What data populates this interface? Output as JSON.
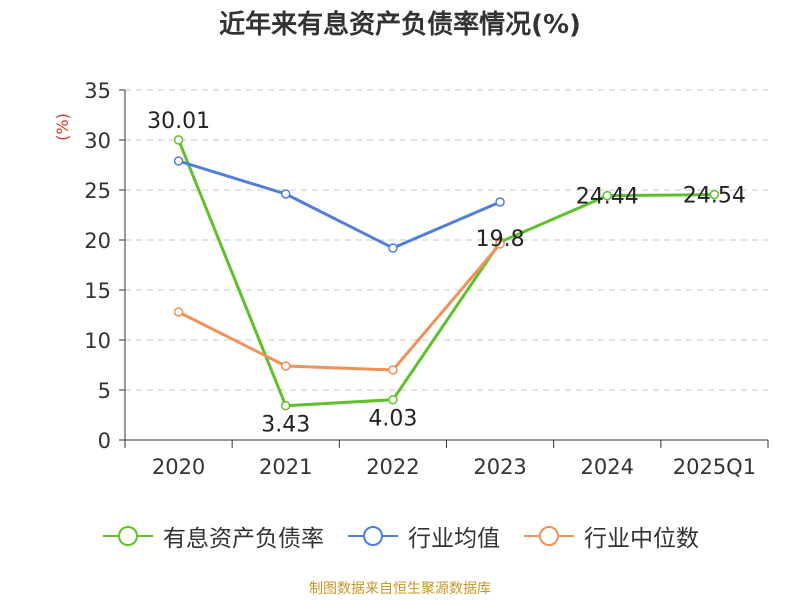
{
  "title": "近年来有息资产负债率情况(%)",
  "source": "制图数据来自恒生聚源数据库",
  "chart_data": {
    "type": "line",
    "title": "近年来有息资产负债率情况(%)",
    "ylabel": "(%)",
    "xlabel": "",
    "categories": [
      "2020",
      "2021",
      "2022",
      "2023",
      "2024",
      "2025Q1"
    ],
    "y_ticks": [
      "0",
      "5",
      "10",
      "15",
      "20",
      "25",
      "30",
      "35"
    ],
    "ylim": [
      0,
      35
    ],
    "grid": true,
    "legend_position": "bottom",
    "series": [
      {
        "name": "有息资产负债率",
        "color": "#5ec12b",
        "values": [
          30.01,
          3.43,
          4.03,
          19.8,
          24.44,
          24.54
        ],
        "labels": [
          "30.01",
          "3.43",
          "4.03",
          "19.8",
          "24.44",
          "24.54"
        ]
      },
      {
        "name": "行业均值",
        "color": "#4e7fd9",
        "values": [
          27.9,
          24.6,
          19.2,
          23.8,
          null,
          null
        ]
      },
      {
        "name": "行业中位数",
        "color": "#f2905a",
        "values": [
          12.8,
          7.4,
          7.0,
          19.6,
          null,
          null
        ]
      }
    ]
  }
}
